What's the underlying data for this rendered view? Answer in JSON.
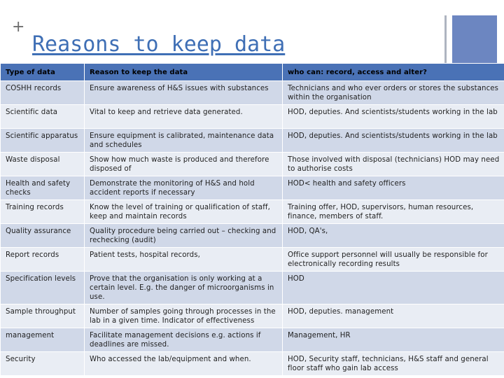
{
  "slide": {
    "plus_mark": "+",
    "title": "Reasons to keep data"
  },
  "colors": {
    "title": "#3f6fb5",
    "header_fill": "#4a72b6",
    "row_odd": "#d0d8e8",
    "row_even": "#e9edf4",
    "accent_block": "#6c86c1",
    "accent_line": "#aeb4c0"
  },
  "table": {
    "headers": [
      "Type of data",
      "Reason to keep the data",
      "who can: record, access and alter?"
    ],
    "rows": [
      [
        "COSHH records",
        "Ensure awareness of H&S issues with substances",
        "Technicians and who ever orders or stores the substances within the organisation"
      ],
      [
        "Scientific data",
        "Vital to keep and retrieve data generated.",
        "HOD, deputies. And scientists/students working in the lab"
      ],
      [
        "Scientific apparatus",
        "Ensure equipment is calibrated, maintenance data and schedules",
        "HOD, deputies. And scientists/students working in the lab"
      ],
      [
        "Waste disposal",
        "Show how much waste is produced and therefore disposed of",
        "Those involved with disposal (technicians) HOD may need to authorise costs"
      ],
      [
        "Health and safety checks",
        "Demonstrate the monitoring of H&S and hold accident reports if necessary",
        "HOD< health and safety officers"
      ],
      [
        "Training records",
        "Know the level of training or qualification of staff, keep and maintain records",
        "Training offer, HOD, supervisors, human resources, finance, members of staff."
      ],
      [
        "Quality assurance",
        "Quality procedure being carried out – checking and rechecking (audit)",
        "HOD, QA's,"
      ],
      [
        "Report records",
        "Patient tests, hospital records,",
        "Office support personnel will usually be responsible for electronically recording results"
      ],
      [
        "Specification levels",
        "Prove that the organisation is only working at a certain level. E.g. the danger of microorganisms in use.",
        "HOD"
      ],
      [
        "Sample throughput",
        "Number of samples going through processes in the lab in a given time. Indicator of effectiveness",
        "HOD, deputies. management"
      ],
      [
        "management",
        "Facilitate management decisions e.g. actions if deadlines are missed.",
        "Management, HR"
      ],
      [
        "Security",
        "Who accessed the lab/equipment and when.",
        "HOD, Security staff, technicians, H&S staff and general floor staff who gain lab access"
      ]
    ]
  }
}
